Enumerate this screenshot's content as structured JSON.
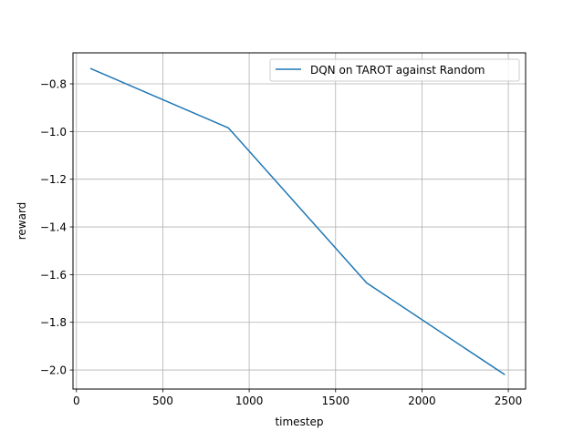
{
  "chart_data": {
    "type": "line",
    "xlabel": "timestep",
    "ylabel": "reward",
    "xlim": [
      -20,
      2600
    ],
    "ylim": [
      -2.08,
      -0.67
    ],
    "x_ticks": [
      0,
      500,
      1000,
      1500,
      2000,
      2500
    ],
    "y_ticks": [
      -0.8,
      -1.0,
      -1.2,
      -1.4,
      -1.6,
      -1.8,
      -2.0
    ],
    "x_tick_labels": [
      "0",
      "500",
      "1000",
      "1500",
      "2000",
      "2500"
    ],
    "y_tick_labels": [
      "−0.8",
      "−1.0",
      "−1.2",
      "−1.4",
      "−1.6",
      "−1.8",
      "−2.0"
    ],
    "grid": true,
    "legend": {
      "position": "top-right"
    },
    "series": [
      {
        "name": "DQN on TAROT against Random",
        "color": "#1f77b4",
        "x": [
          80,
          880,
          1680,
          2480
        ],
        "y": [
          -0.735,
          -0.985,
          -1.635,
          -2.02
        ]
      }
    ]
  }
}
